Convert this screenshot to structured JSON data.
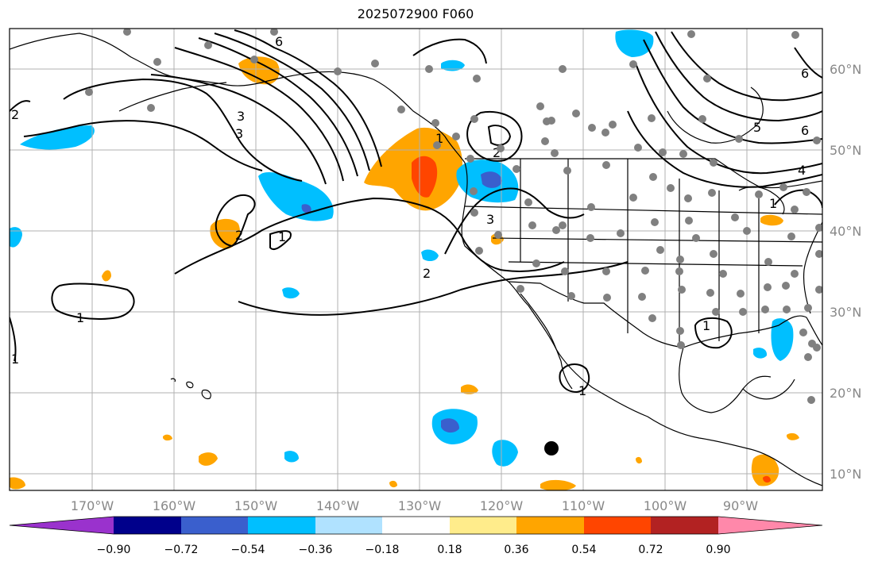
{
  "title": "2025072900 F060",
  "axes": {
    "lon_labels": [
      "170°W",
      "160°W",
      "150°W",
      "140°W",
      "130°W",
      "120°W",
      "110°W",
      "100°W",
      "90°W"
    ],
    "lat_labels": [
      "60°N",
      "50°N",
      "40°N",
      "30°N",
      "20°N",
      "10°N"
    ]
  },
  "colorbar": {
    "colors": [
      "#9a32cd",
      "#00008b",
      "#3a5fcd",
      "#00bfff",
      "#b0e2ff",
      "#ffffff",
      "#ffec8b",
      "#ffa500",
      "#ff4500",
      "#b22222",
      "#ff88aa"
    ],
    "tick_labels": [
      "−0.90",
      "−0.72",
      "−0.54",
      "−0.36",
      "−0.18",
      "0.18",
      "0.36",
      "0.54",
      "0.72",
      "0.90"
    ]
  },
  "contour_labels": [
    "1",
    "1",
    "1",
    "1",
    "1",
    "1",
    "1",
    "2",
    "2",
    "2",
    "2",
    "3",
    "3",
    "3",
    "4",
    "5",
    "6",
    "6",
    "6"
  ],
  "colors": {
    "land_outline": "#000000",
    "grid": "#b0b0b0",
    "station_dot": "#808080",
    "contour": "#000000"
  }
}
